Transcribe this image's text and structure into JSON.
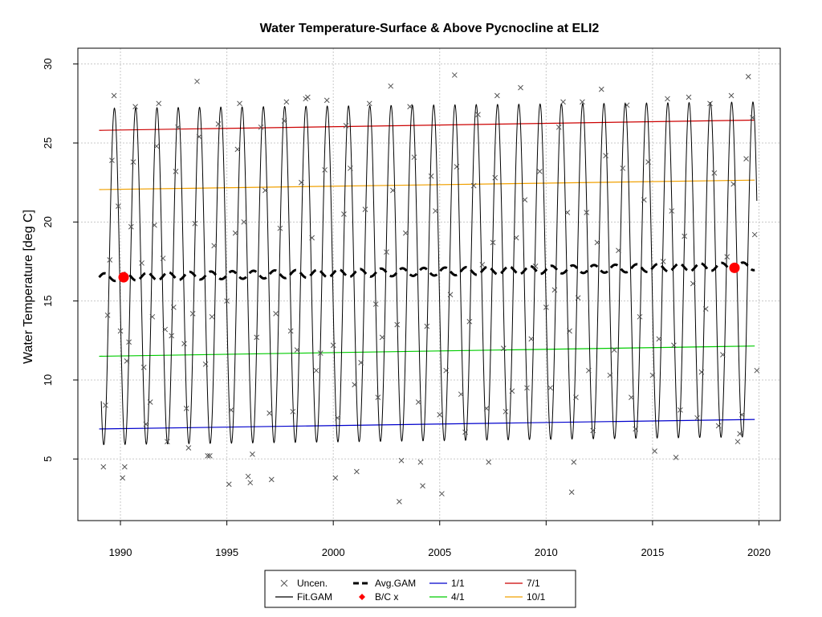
{
  "chart_data": {
    "type": "line",
    "title": "Water Temperature-Surface & Above Pycnocline at ELI2",
    "xlabel": "",
    "ylabel": "Water Temperature [deg C]",
    "xlim": [
      1988,
      2021
    ],
    "ylim": [
      1.1,
      31.0
    ],
    "xticks": [
      "1990",
      "1995",
      "2000",
      "2005",
      "2010",
      "2015",
      "2020"
    ],
    "yticks": [
      "5",
      "10",
      "15",
      "20",
      "25",
      "30"
    ],
    "grid": true,
    "legend": {
      "position": "bottom-center",
      "entries": [
        {
          "label": "Uncen.",
          "kind": "cross",
          "color": "#555555"
        },
        {
          "label": "Fit.GAM",
          "kind": "line",
          "color": "#000000"
        },
        {
          "label": "Avg.GAM",
          "kind": "dash",
          "color": "#000000"
        },
        {
          "label": "B/C x",
          "kind": "diamond",
          "color": "#ff0000"
        },
        {
          "label": "1/1",
          "kind": "line",
          "color": "#0000cc"
        },
        {
          "label": "4/1",
          "kind": "line",
          "color": "#00cc00"
        },
        {
          "label": "7/1",
          "kind": "line",
          "color": "#cc0000"
        },
        {
          "label": "10/1",
          "kind": "line",
          "color": "#f0a000"
        }
      ]
    },
    "series": [
      {
        "name": "1/1",
        "color": "#0000cc",
        "x": [
          1989,
          2019.8
        ],
        "y": [
          6.9,
          7.5
        ]
      },
      {
        "name": "4/1",
        "color": "#00cc00",
        "x": [
          1989,
          2019.8
        ],
        "y": [
          11.5,
          12.15
        ]
      },
      {
        "name": "7/1",
        "color": "#cc0000",
        "x": [
          1989,
          2019.8
        ],
        "y": [
          25.8,
          26.45
        ]
      },
      {
        "name": "10/1",
        "color": "#f0a000",
        "x": [
          1989,
          2019.8
        ],
        "y": [
          22.05,
          22.65
        ]
      },
      {
        "name": "Avg.GAM",
        "color": "#000000",
        "x_range": [
          1989,
          2019.8
        ],
        "y_start": 16.5,
        "y_end": 17.2,
        "wiggle": 0.25
      },
      {
        "name": "Fit.GAM",
        "color": "#000000",
        "x_range": [
          1989.1,
          2019.9
        ],
        "low": [
          5.9,
          6.4
        ],
        "high": [
          27.2,
          27.6
        ]
      }
    ],
    "bc_points": [
      {
        "x": 1990.15,
        "y": 16.5
      },
      {
        "x": 2018.85,
        "y": 17.1
      }
    ],
    "uncensored": [
      [
        1989.2,
        4.5
      ],
      [
        1989.3,
        8.4
      ],
      [
        1989.4,
        14.1
      ],
      [
        1989.5,
        17.6
      ],
      [
        1989.6,
        23.9
      ],
      [
        1989.7,
        28.0
      ],
      [
        1989.9,
        21.0
      ],
      [
        1990.0,
        13.1
      ],
      [
        1990.1,
        3.8
      ],
      [
        1990.2,
        4.5
      ],
      [
        1990.3,
        11.2
      ],
      [
        1990.4,
        12.4
      ],
      [
        1990.5,
        19.7
      ],
      [
        1990.6,
        23.8
      ],
      [
        1990.7,
        27.3
      ],
      [
        1991.0,
        17.4
      ],
      [
        1991.1,
        10.8
      ],
      [
        1991.2,
        7.2
      ],
      [
        1991.4,
        8.6
      ],
      [
        1991.5,
        14.0
      ],
      [
        1991.6,
        19.8
      ],
      [
        1991.7,
        24.8
      ],
      [
        1991.8,
        27.5
      ],
      [
        1992.0,
        17.7
      ],
      [
        1992.1,
        13.2
      ],
      [
        1992.2,
        6.1
      ],
      [
        1992.4,
        12.8
      ],
      [
        1992.5,
        14.6
      ],
      [
        1992.6,
        23.2
      ],
      [
        1992.7,
        26.0
      ],
      [
        1993.0,
        12.3
      ],
      [
        1993.1,
        8.2
      ],
      [
        1993.2,
        5.7
      ],
      [
        1993.4,
        14.2
      ],
      [
        1993.5,
        19.9
      ],
      [
        1993.6,
        28.9
      ],
      [
        1993.7,
        25.4
      ],
      [
        1994.0,
        11.0
      ],
      [
        1994.1,
        5.2
      ],
      [
        1994.2,
        5.2
      ],
      [
        1994.3,
        14.0
      ],
      [
        1994.4,
        18.5
      ],
      [
        1994.6,
        26.2
      ],
      [
        1995.0,
        15.0
      ],
      [
        1995.1,
        3.4
      ],
      [
        1995.2,
        8.1
      ],
      [
        1995.4,
        19.3
      ],
      [
        1995.5,
        24.6
      ],
      [
        1995.6,
        27.5
      ],
      [
        1995.8,
        20.0
      ],
      [
        1996.0,
        3.9
      ],
      [
        1996.1,
        3.5
      ],
      [
        1996.2,
        5.3
      ],
      [
        1996.4,
        12.7
      ],
      [
        1996.6,
        26.0
      ],
      [
        1996.8,
        22.0
      ],
      [
        1997.0,
        7.9
      ],
      [
        1997.1,
        3.7
      ],
      [
        1997.3,
        14.2
      ],
      [
        1997.5,
        19.6
      ],
      [
        1997.7,
        26.4
      ],
      [
        1997.8,
        27.6
      ],
      [
        1998.0,
        13.1
      ],
      [
        1998.1,
        8.0
      ],
      [
        1998.3,
        11.9
      ],
      [
        1998.5,
        22.5
      ],
      [
        1998.7,
        27.8
      ],
      [
        1998.8,
        27.9
      ],
      [
        1999.0,
        19.0
      ],
      [
        1999.2,
        10.6
      ],
      [
        1999.4,
        11.7
      ],
      [
        1999.6,
        23.3
      ],
      [
        1999.7,
        27.7
      ],
      [
        2000.0,
        12.2
      ],
      [
        2000.1,
        3.8
      ],
      [
        2000.2,
        7.6
      ],
      [
        2000.5,
        20.5
      ],
      [
        2000.6,
        26.1
      ],
      [
        2000.8,
        23.4
      ],
      [
        2001.0,
        9.7
      ],
      [
        2001.1,
        4.2
      ],
      [
        2001.3,
        11.1
      ],
      [
        2001.5,
        20.8
      ],
      [
        2001.7,
        27.5
      ],
      [
        2002.0,
        14.8
      ],
      [
        2002.1,
        8.9
      ],
      [
        2002.3,
        12.7
      ],
      [
        2002.5,
        18.1
      ],
      [
        2002.7,
        28.6
      ],
      [
        2002.8,
        22.0
      ],
      [
        2003.0,
        13.5
      ],
      [
        2003.1,
        2.3
      ],
      [
        2003.2,
        4.9
      ],
      [
        2003.4,
        19.3
      ],
      [
        2003.6,
        27.3
      ],
      [
        2003.8,
        24.1
      ],
      [
        2004.0,
        8.6
      ],
      [
        2004.1,
        4.8
      ],
      [
        2004.2,
        3.3
      ],
      [
        2004.4,
        13.4
      ],
      [
        2004.6,
        22.9
      ],
      [
        2004.8,
        20.7
      ],
      [
        2005.0,
        7.8
      ],
      [
        2005.1,
        2.8
      ],
      [
        2005.3,
        10.6
      ],
      [
        2005.5,
        15.4
      ],
      [
        2005.7,
        29.3
      ],
      [
        2005.8,
        23.5
      ],
      [
        2006.0,
        9.1
      ],
      [
        2006.2,
        6.7
      ],
      [
        2006.4,
        13.7
      ],
      [
        2006.6,
        22.3
      ],
      [
        2006.8,
        26.8
      ],
      [
        2007.0,
        17.3
      ],
      [
        2007.2,
        8.2
      ],
      [
        2007.3,
        4.8
      ],
      [
        2007.5,
        18.7
      ],
      [
        2007.6,
        22.8
      ],
      [
        2007.7,
        28.0
      ],
      [
        2008.0,
        12.0
      ],
      [
        2008.1,
        8.0
      ],
      [
        2008.4,
        9.3
      ],
      [
        2008.6,
        19.0
      ],
      [
        2008.8,
        28.5
      ],
      [
        2009.0,
        21.4
      ],
      [
        2009.1,
        9.5
      ],
      [
        2009.3,
        12.6
      ],
      [
        2009.5,
        17.2
      ],
      [
        2009.7,
        23.2
      ],
      [
        2010.0,
        14.6
      ],
      [
        2010.2,
        9.5
      ],
      [
        2010.4,
        15.7
      ],
      [
        2010.6,
        26.0
      ],
      [
        2010.8,
        27.6
      ],
      [
        2011.0,
        20.6
      ],
      [
        2011.1,
        13.1
      ],
      [
        2011.2,
        2.9
      ],
      [
        2011.3,
        4.8
      ],
      [
        2011.4,
        8.9
      ],
      [
        2011.5,
        15.2
      ],
      [
        2011.7,
        27.6
      ],
      [
        2011.9,
        20.6
      ],
      [
        2012.0,
        10.6
      ],
      [
        2012.2,
        6.8
      ],
      [
        2012.4,
        18.7
      ],
      [
        2012.6,
        28.4
      ],
      [
        2012.8,
        24.2
      ],
      [
        2013.0,
        10.3
      ],
      [
        2013.2,
        11.9
      ],
      [
        2013.4,
        18.2
      ],
      [
        2013.6,
        23.4
      ],
      [
        2013.8,
        27.4
      ],
      [
        2014.0,
        8.9
      ],
      [
        2014.2,
        6.9
      ],
      [
        2014.4,
        14.0
      ],
      [
        2014.6,
        21.4
      ],
      [
        2014.8,
        23.8
      ],
      [
        2015.0,
        10.3
      ],
      [
        2015.1,
        5.5
      ],
      [
        2015.3,
        12.6
      ],
      [
        2015.5,
        17.5
      ],
      [
        2015.7,
        27.8
      ],
      [
        2015.9,
        20.7
      ],
      [
        2016.0,
        12.2
      ],
      [
        2016.1,
        5.1
      ],
      [
        2016.3,
        8.1
      ],
      [
        2016.5,
        19.1
      ],
      [
        2016.7,
        27.9
      ],
      [
        2016.9,
        16.1
      ],
      [
        2017.1,
        7.6
      ],
      [
        2017.3,
        10.5
      ],
      [
        2017.5,
        14.5
      ],
      [
        2017.7,
        27.5
      ],
      [
        2017.9,
        23.1
      ],
      [
        2018.1,
        7.1
      ],
      [
        2018.3,
        11.6
      ],
      [
        2018.5,
        17.8
      ],
      [
        2018.7,
        28.0
      ],
      [
        2018.8,
        22.4
      ],
      [
        2019.0,
        6.1
      ],
      [
        2019.1,
        6.6
      ],
      [
        2019.2,
        7.8
      ],
      [
        2019.4,
        24.0
      ],
      [
        2019.5,
        29.2
      ],
      [
        2019.7,
        26.6
      ],
      [
        2019.8,
        19.2
      ],
      [
        2019.9,
        10.6
      ]
    ]
  }
}
